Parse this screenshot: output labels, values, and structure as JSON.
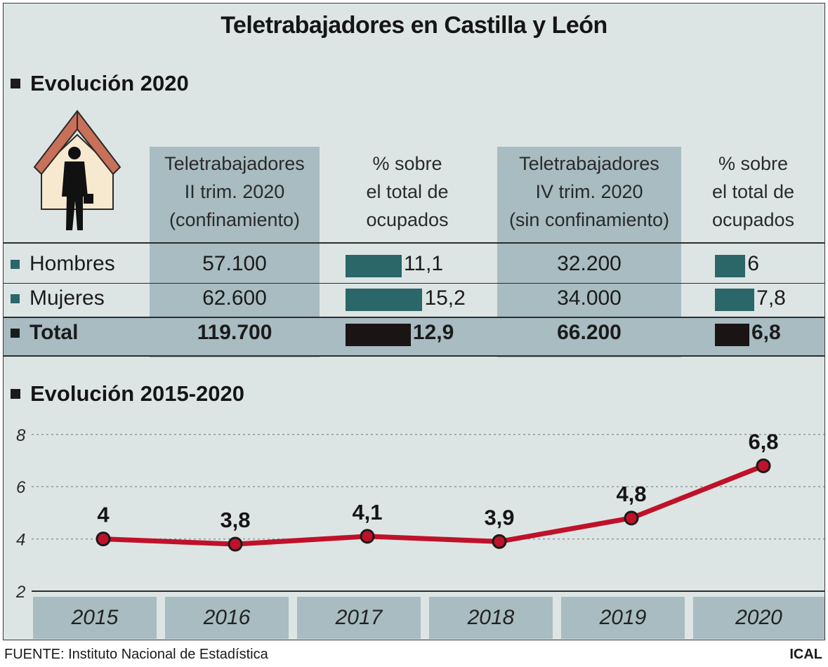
{
  "title": "Teletrabajadores en Castilla y León",
  "section1": {
    "title": "Evolución 2020"
  },
  "table": {
    "col1_header": [
      "Teletrabajadores",
      "II trim. 2020",
      "(confinamiento)"
    ],
    "col2_header": [
      "% sobre",
      "el total de",
      "ocupados"
    ],
    "col3_header": [
      "Teletrabajadores",
      "IV trim. 2020",
      "(sin confinamiento)"
    ],
    "col4_header": [
      "% sobre",
      "el total de",
      "ocupados"
    ],
    "rows": [
      {
        "label": "Hombres",
        "q2": "57.100",
        "q2_pct": 11.1,
        "q2_pct_text": "11,1",
        "q4": "32.200",
        "q4_pct": 6,
        "q4_pct_text": "6"
      },
      {
        "label": "Mujeres",
        "q2": "62.600",
        "q2_pct": 15.2,
        "q2_pct_text": "15,2",
        "q4": "34.000",
        "q4_pct": 7.8,
        "q4_pct_text": "7,8"
      },
      {
        "label": "Total",
        "q2": "119.700",
        "q2_pct": 12.9,
        "q2_pct_text": "12,9",
        "q4": "66.200",
        "q4_pct": 6.8,
        "q4_pct_text": "6,8"
      }
    ]
  },
  "section2": {
    "title": "Evolución 2015-2020"
  },
  "chart_data": {
    "type": "line",
    "title": "Evolución 2015-2020",
    "x": [
      "2015",
      "2016",
      "2017",
      "2018",
      "2019",
      "2020"
    ],
    "values": [
      4,
      3.8,
      4.1,
      3.9,
      4.8,
      6.8
    ],
    "value_labels": [
      "4",
      "3,8",
      "4,1",
      "3,9",
      "4,8",
      "6,8"
    ],
    "yticks": [
      "2",
      "4",
      "6",
      "8"
    ],
    "ylim": [
      2,
      8
    ],
    "xlabel": "",
    "ylabel": "",
    "grid": true
  },
  "footer": {
    "source": "FUENTE: Instituto Nacional de Estadística",
    "brand": "ICAL"
  },
  "colors": {
    "panel": "#dde5e4",
    "band": "#a8bcc1",
    "bar_teal": "#2b6669",
    "bar_total": "#1a1414",
    "line": "#c0112a",
    "marker_fill": "#c0112a"
  }
}
